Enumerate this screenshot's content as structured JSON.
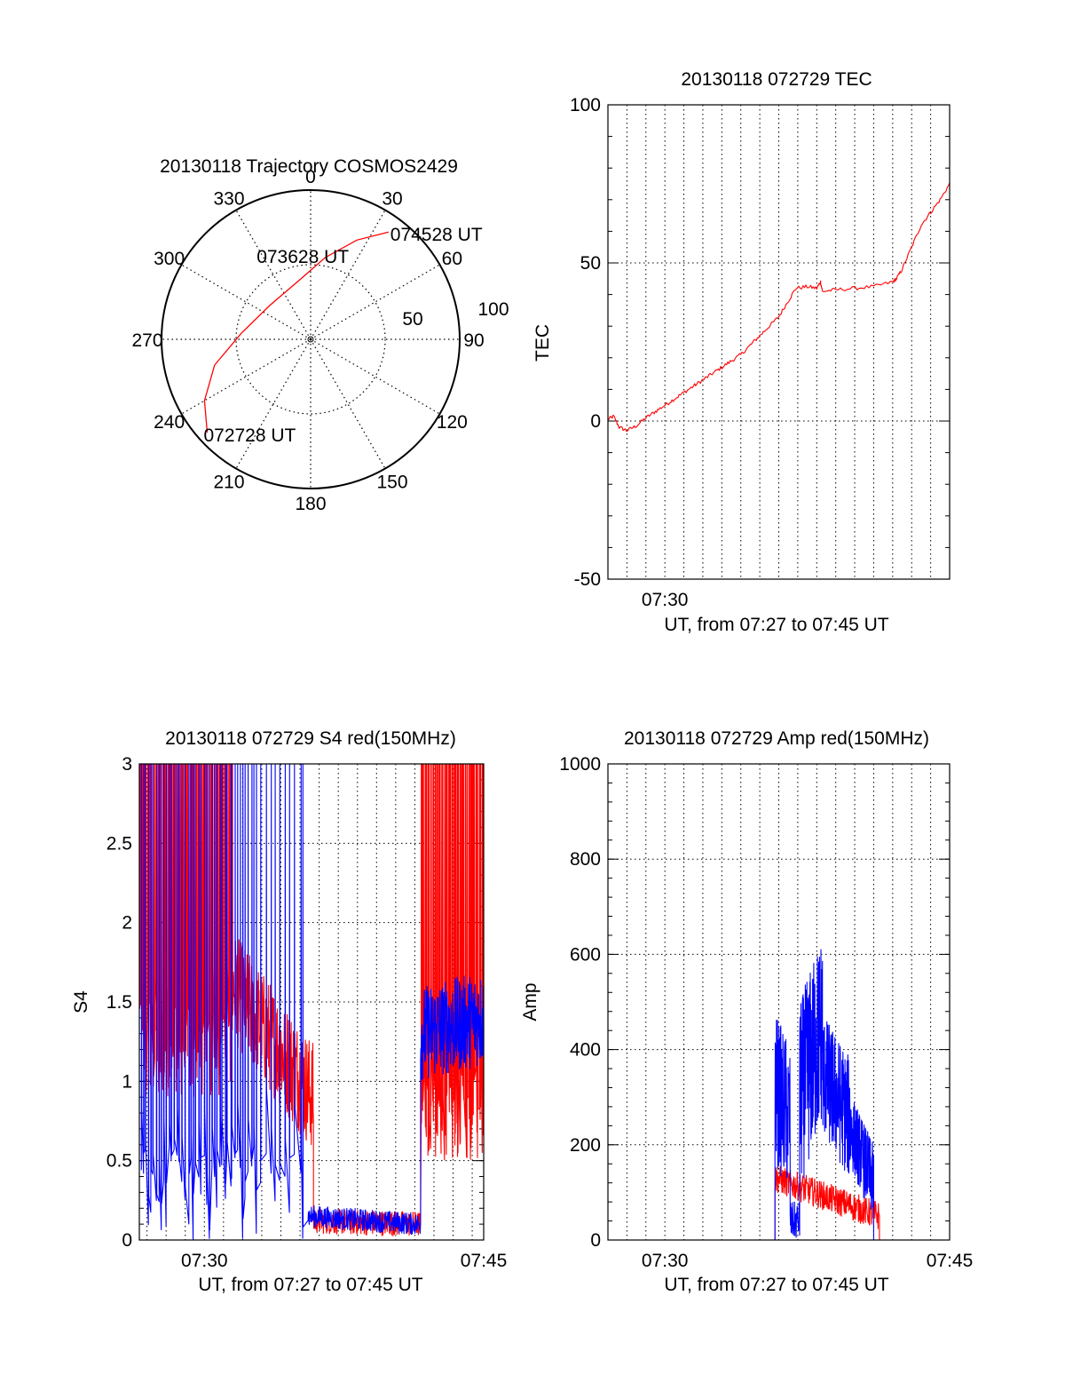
{
  "chart_data": [
    {
      "type": "polar",
      "title": "20130118 Trajectory COSMOS2429",
      "azimuth_labels": [
        "0",
        "30",
        "60",
        "90",
        "120",
        "150",
        "180",
        "210",
        "240",
        "270",
        "300",
        "330"
      ],
      "elevation_ring_labels": [
        "50",
        "100"
      ],
      "trajectory_labels": [
        {
          "text": "074528 UT",
          "az": 36,
          "el": 10
        },
        {
          "text": "073628 UT",
          "az": 351,
          "el": 53
        },
        {
          "text": "072728 UT",
          "az": 228,
          "el": 6
        }
      ],
      "trajectory": [
        {
          "az": 36,
          "el": 10
        },
        {
          "az": 25,
          "el": 24
        },
        {
          "az": 10,
          "el": 40
        },
        {
          "az": 351,
          "el": 53
        },
        {
          "az": 310,
          "el": 58
        },
        {
          "az": 275,
          "el": 48
        },
        {
          "az": 255,
          "el": 30
        },
        {
          "az": 240,
          "el": 16
        },
        {
          "az": 228,
          "el": 6
        }
      ],
      "trajectory_color": "#ff0000"
    },
    {
      "type": "line",
      "title": "20130118 072729 TEC",
      "ylabel": "TEC",
      "xlabel": "UT, from 07:27 to 07:45 UT",
      "xlim": [
        27.0,
        45.0
      ],
      "ylim": [
        -50,
        100
      ],
      "yticks": [
        "-50",
        "0",
        "50",
        "100"
      ],
      "xtick_labels": [
        {
          "x": 30.0,
          "label": "07:30"
        }
      ],
      "series": [
        {
          "color": "#ff0000",
          "points": [
            [
              27.0,
              0.5
            ],
            [
              27.3,
              1.5
            ],
            [
              27.6,
              -2
            ],
            [
              28.0,
              -3
            ],
            [
              28.5,
              -1.5
            ],
            [
              29.0,
              1
            ],
            [
              29.5,
              3
            ],
            [
              30.0,
              5
            ],
            [
              30.5,
              7
            ],
            [
              31.0,
              9
            ],
            [
              31.5,
              11
            ],
            [
              32.0,
              13
            ],
            [
              32.5,
              15
            ],
            [
              33.0,
              17
            ],
            [
              33.5,
              19
            ],
            [
              34.0,
              21
            ],
            [
              34.5,
              24
            ],
            [
              35.0,
              27
            ],
            [
              35.5,
              30
            ],
            [
              36.0,
              33
            ],
            [
              36.5,
              38
            ],
            [
              36.9,
              42
            ],
            [
              37.5,
              42.5
            ],
            [
              38.0,
              42
            ],
            [
              38.2,
              44
            ],
            [
              38.3,
              41
            ],
            [
              39.0,
              41.5
            ],
            [
              40.0,
              42
            ],
            [
              41.0,
              42.5
            ],
            [
              42.0,
              44
            ],
            [
              42.2,
              45
            ],
            [
              42.5,
              48
            ],
            [
              43.0,
              55
            ],
            [
              43.5,
              62
            ],
            [
              44.0,
              66
            ],
            [
              44.5,
              70
            ],
            [
              45.0,
              75
            ],
            [
              45.5,
              80
            ]
          ]
        }
      ]
    },
    {
      "type": "line",
      "title": "20130118 072729 S4 red(150MHz)",
      "ylabel": "S4",
      "xlabel": "UT, from 07:27 to 07:45 UT",
      "xlim": [
        26.6,
        44.6
      ],
      "ylim": [
        0,
        3
      ],
      "yticks": [
        "0",
        "0.5",
        "1",
        "1.5",
        "2",
        "2.5",
        "3"
      ],
      "xtick_labels": [
        {
          "x": 30.0,
          "label": "07:30"
        },
        {
          "x": 45.0,
          "label": "07:45"
        }
      ],
      "series": [
        {
          "color": "#ff0000",
          "segments": [
            {
              "x": [
                26.6,
                31.5
              ],
              "mode": "spikes",
              "low": 0.9,
              "high": 3.0,
              "count": 90
            },
            {
              "x": [
                31.5,
                35.7
              ],
              "mode": "noise",
              "base": [
                1.6,
                0.9
              ],
              "amp": 0.35,
              "count": 260
            },
            {
              "x": [
                35.7,
                41.3
              ],
              "mode": "noise",
              "base": [
                0.12,
                0.1
              ],
              "amp": 0.08,
              "count": 300
            },
            {
              "x": [
                41.3,
                44.6
              ],
              "mode": "spikes",
              "low": 0.5,
              "high": 3.0,
              "count": 60
            }
          ]
        },
        {
          "color": "#0000ff",
          "segments": [
            {
              "x": [
                26.6,
                32.8
              ],
              "mode": "spikes",
              "low": 0.0,
              "high": 3.0,
              "count": 45
            },
            {
              "x": [
                32.8,
                35.4
              ],
              "mode": "spikes",
              "low": 0.0,
              "high": 3.0,
              "count": 10
            },
            {
              "x": [
                35.4,
                41.3
              ],
              "mode": "noise",
              "base": [
                0.15,
                0.1
              ],
              "amp": 0.07,
              "count": 300
            },
            {
              "x": [
                41.3,
                44.6
              ],
              "mode": "noise",
              "base": [
                1.3,
                1.4
              ],
              "amp": 0.3,
              "count": 240
            }
          ]
        }
      ]
    },
    {
      "type": "line",
      "title": "20130118 072729 Amp red(150MHz)",
      "ylabel": "Amp",
      "xlabel": "UT, from 07:27 to 07:45 UT",
      "xlim": [
        27.0,
        45.0
      ],
      "ylim": [
        0,
        1000
      ],
      "yticks": [
        "0",
        "200",
        "400",
        "600",
        "800",
        "1000"
      ],
      "xtick_labels": [
        {
          "x": 30.0,
          "label": "07:30"
        },
        {
          "x": 45.0,
          "label": "07:45"
        }
      ],
      "series": [
        {
          "color": "#ff0000",
          "segments": [
            {
              "x": [
                27.0,
                35.8
              ],
              "mode": "flat",
              "value": 0
            },
            {
              "x": [
                35.8,
                41.3
              ],
              "mode": "noise",
              "base": [
                130,
                50
              ],
              "amp": 30,
              "count": 300
            },
            {
              "x": [
                41.3,
                45.0
              ],
              "mode": "flat",
              "value": 0
            }
          ]
        },
        {
          "color": "#0000ff",
          "segments": [
            {
              "x": [
                27.0,
                35.8
              ],
              "mode": "flat",
              "value": 0
            },
            {
              "x": [
                35.8,
                36.6
              ],
              "mode": "noise",
              "base": [
                320,
                250
              ],
              "amp": 160,
              "count": 60
            },
            {
              "x": [
                36.6,
                37.1
              ],
              "mode": "noise",
              "base": [
                40,
                40
              ],
              "amp": 40,
              "count": 30
            },
            {
              "x": [
                37.1,
                38.3
              ],
              "mode": "noise",
              "base": [
                300,
                450
              ],
              "amp": 200,
              "count": 120
            },
            {
              "x": [
                38.3,
                39.8
              ],
              "mode": "noise",
              "base": [
                350,
                250
              ],
              "amp": 130,
              "count": 140
            },
            {
              "x": [
                39.8,
                41.0
              ],
              "mode": "noise",
              "base": [
                230,
                120
              ],
              "amp": 80,
              "count": 110
            },
            {
              "x": [
                41.0,
                45.0
              ],
              "mode": "flat",
              "value": 0
            }
          ]
        }
      ]
    }
  ]
}
